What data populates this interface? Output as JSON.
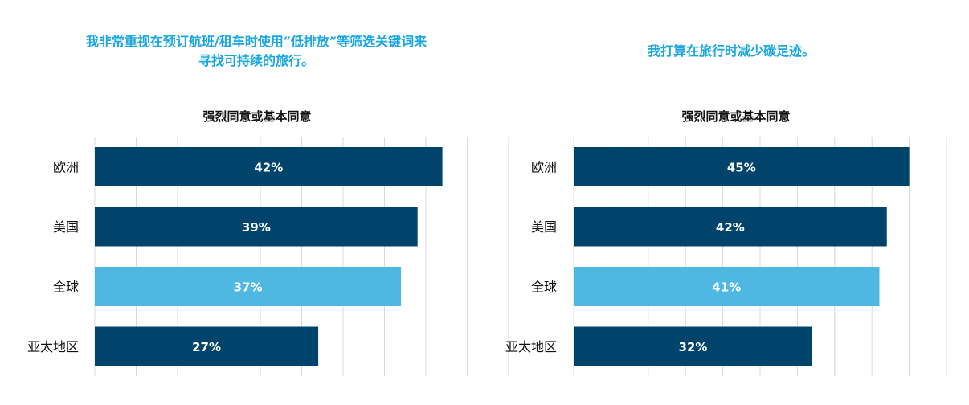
{
  "chart_data": [
    {
      "type": "bar",
      "orientation": "horizontal",
      "title": "我非常重视在预订航班/租车时使用“低排放”等筛选关键词来寻找可持续的旅行。",
      "subtitle": "强烈同意或基本同意",
      "categories": [
        "欧洲",
        "美国",
        "全球",
        "亚太地区"
      ],
      "values": [
        42,
        39,
        37,
        27
      ],
      "value_labels": [
        "42%",
        "39%",
        "37%",
        "27%"
      ],
      "highlight_category": "全球",
      "xlim": [
        0,
        45
      ],
      "grid": true,
      "unit": "%"
    },
    {
      "type": "bar",
      "orientation": "horizontal",
      "title": "我打算在旅行时减少碳足迹。",
      "subtitle": "强烈同意或基本同意",
      "categories": [
        "欧洲",
        "美国",
        "全球",
        "亚太地区"
      ],
      "values": [
        45,
        42,
        41,
        32
      ],
      "value_labels": [
        "45%",
        "42%",
        "41%",
        "32%"
      ],
      "highlight_category": "全球",
      "xlim": [
        0,
        50
      ],
      "grid": true,
      "unit": "%"
    }
  ],
  "colors": {
    "bar": "#00446b",
    "highlight": "#4fb8e2",
    "title": "#1aa7e0",
    "grid": "#d9d9d9",
    "text": "#111111",
    "bar_text": "#ffffff"
  }
}
